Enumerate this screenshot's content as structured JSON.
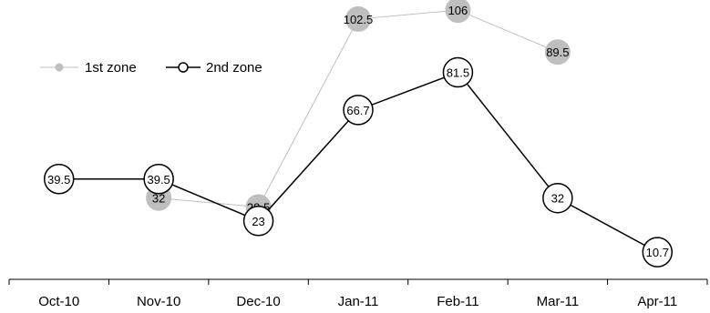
{
  "chart_data": {
    "type": "line",
    "categories": [
      "Oct-10",
      "Nov-10",
      "Dec-10",
      "Jan-11",
      "Feb-11",
      "Mar-11",
      "Apr-11"
    ],
    "series": [
      {
        "name": "1st zone",
        "values": [
          null,
          32,
          28.5,
          102.5,
          106,
          89.5,
          null
        ],
        "labels": [
          "",
          "32",
          "28.5",
          "102.5",
          "106",
          "89.5",
          ""
        ],
        "color": "#bfbfbf",
        "marker": "filled-circle"
      },
      {
        "name": "2nd zone",
        "values": [
          39.5,
          39.5,
          23,
          66.7,
          81.5,
          32,
          10.7
        ],
        "labels": [
          "39.5",
          "39.5",
          "23",
          "66.7",
          "81.5",
          "32",
          "10.7"
        ],
        "color": "#000000",
        "marker": "open-circle"
      }
    ],
    "legend": {
      "position": "top-left",
      "entries": [
        "1st zone",
        "2nd zone"
      ]
    },
    "ylim": [
      0,
      110
    ],
    "grid": false,
    "title": "",
    "xlabel": "",
    "ylabel": ""
  }
}
